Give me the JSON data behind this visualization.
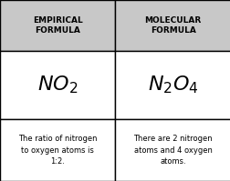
{
  "header_left": "EMPIRICAL\nFORMULA",
  "header_right": "MOLECULAR\nFORMULA",
  "desc_left": "The ratio of nitrogen\nto oxygen atoms is\n1:2.",
  "desc_right": "There are 2 nitrogen\natoms and 4 oxygen\natoms.",
  "header_bg": "#c8c8c8",
  "cell_bg": "#ffffff",
  "border_color": "#000000",
  "header_font_size": 6.5,
  "formula_font_size": 16,
  "desc_font_size": 6.0,
  "fig_width": 2.53,
  "fig_height": 1.99,
  "dpi": 100
}
